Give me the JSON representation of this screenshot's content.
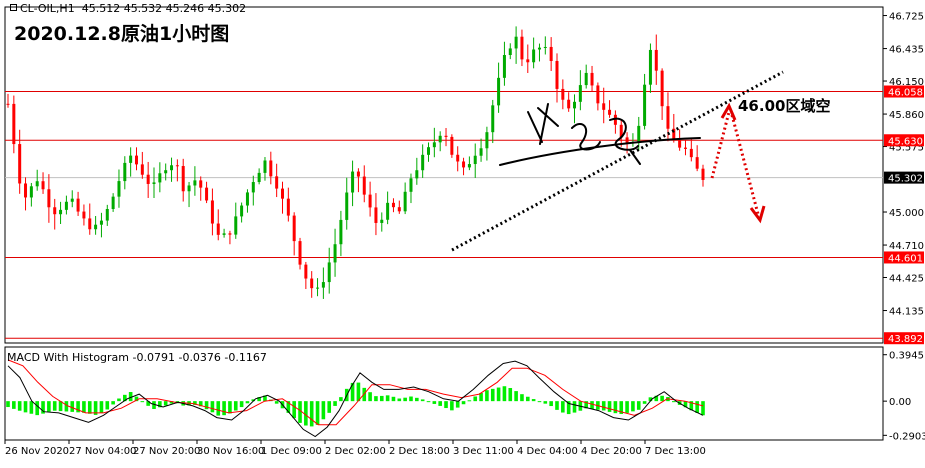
{
  "header": {
    "symbol": "CL-OIL,H1",
    "ohlc": "45.512 45.532 45.246 45.302",
    "macd_label": "MACD With Histogram",
    "macd_values": "-0.0791 -0.0376 -0.1167"
  },
  "colors": {
    "candle_red": "#ff0000",
    "candle_green": "#00aa00",
    "level_line": "#e00000",
    "price_badge": "#ff0000",
    "current_badge": "#000000",
    "signal_line": "#ff0000",
    "macd_line": "#000000",
    "hist_pos": "#00ee00"
  },
  "chart_data": [
    {
      "type": "candlestick",
      "title": "2020.12.8原油1小时图",
      "y_ticks": [
        "46.725",
        "46.435",
        "46.150",
        "45.860",
        "45.575",
        "45.000",
        "44.710",
        "44.425",
        "44.135"
      ],
      "ylim": [
        43.85,
        46.8
      ],
      "x_ticks": [
        "26 Nov 2020",
        "27 Nov 04:00",
        "27 Nov 20:00",
        "30 Nov 16:00",
        "1 Dec 09:00",
        "2 Dec 02:00",
        "2 Dec 18:00",
        "3 Dec 11:00",
        "4 Dec 04:00",
        "4 Dec 20:00",
        "7 Dec 13:00"
      ],
      "horizontal_levels": [
        "46.058",
        "45.630",
        "44.601",
        "43.892"
      ],
      "current_price": "45.302",
      "close_path": [
        [
          0,
          45.95
        ],
        [
          10,
          45.1
        ],
        [
          20,
          45.3
        ],
        [
          30,
          45.0
        ],
        [
          42,
          45.1
        ],
        [
          52,
          44.9
        ],
        [
          60,
          44.85
        ],
        [
          68,
          45.05
        ],
        [
          75,
          45.3
        ],
        [
          82,
          45.5
        ],
        [
          90,
          45.35
        ],
        [
          97,
          45.2
        ],
        [
          105,
          45.4
        ],
        [
          112,
          45.45
        ],
        [
          118,
          45.2
        ],
        [
          127,
          45.3
        ],
        [
          135,
          45.0
        ],
        [
          142,
          44.75
        ],
        [
          150,
          44.85
        ],
        [
          158,
          45.1
        ],
        [
          165,
          45.3
        ],
        [
          172,
          45.45
        ],
        [
          180,
          45.25
        ],
        [
          188,
          44.95
        ],
        [
          195,
          44.6
        ],
        [
          202,
          44.35
        ],
        [
          208,
          44.3
        ],
        [
          214,
          44.5
        ],
        [
          220,
          44.75
        ],
        [
          226,
          45.1
        ],
        [
          233,
          45.4
        ],
        [
          240,
          45.1
        ],
        [
          247,
          44.9
        ],
        [
          255,
          45.05
        ],
        [
          263,
          45.0
        ],
        [
          270,
          45.3
        ],
        [
          277,
          45.45
        ],
        [
          285,
          45.6
        ],
        [
          292,
          45.75
        ],
        [
          298,
          45.5
        ],
        [
          305,
          45.35
        ],
        [
          312,
          45.5
        ],
        [
          320,
          45.65
        ],
        [
          327,
          46.05
        ],
        [
          334,
          46.4
        ],
        [
          340,
          46.55
        ],
        [
          346,
          46.3
        ],
        [
          352,
          46.4
        ],
        [
          358,
          46.45
        ],
        [
          364,
          46.35
        ],
        [
          370,
          46.0
        ],
        [
          376,
          45.9
        ],
        [
          382,
          46.05
        ],
        [
          388,
          46.2
        ],
        [
          394,
          46.0
        ],
        [
          400,
          45.9
        ],
        [
          406,
          45.8
        ],
        [
          412,
          45.65
        ],
        [
          418,
          45.55
        ],
        [
          424,
          45.85
        ],
        [
          430,
          46.5
        ],
        [
          436,
          46.15
        ],
        [
          442,
          45.7
        ],
        [
          448,
          45.6
        ],
        [
          454,
          45.55
        ],
        [
          460,
          45.4
        ],
        [
          466,
          45.302
        ]
      ],
      "annotation": "46.00区域空"
    },
    {
      "type": "line",
      "title": "MACD With Histogram",
      "y_ticks": [
        "0.3945",
        "0.00",
        "-0.2903"
      ],
      "ylim": [
        -0.33,
        0.46
      ],
      "histogram": [
        [
          0,
          -0.05
        ],
        [
          10,
          -0.09
        ],
        [
          20,
          -0.12
        ],
        [
          30,
          -0.08
        ],
        [
          42,
          -0.09
        ],
        [
          52,
          -0.1
        ],
        [
          60,
          -0.12
        ],
        [
          68,
          -0.06
        ],
        [
          75,
          0.03
        ],
        [
          82,
          0.08
        ],
        [
          90,
          0.0
        ],
        [
          97,
          -0.07
        ],
        [
          105,
          -0.04
        ],
        [
          112,
          -0.01
        ],
        [
          118,
          -0.04
        ],
        [
          127,
          -0.03
        ],
        [
          135,
          -0.08
        ],
        [
          142,
          -0.13
        ],
        [
          150,
          -0.1
        ],
        [
          158,
          -0.04
        ],
        [
          165,
          0.02
        ],
        [
          172,
          0.05
        ],
        [
          180,
          -0.02
        ],
        [
          188,
          -0.1
        ],
        [
          195,
          -0.18
        ],
        [
          202,
          -0.22
        ],
        [
          208,
          -0.2
        ],
        [
          214,
          -0.12
        ],
        [
          220,
          -0.03
        ],
        [
          226,
          0.09
        ],
        [
          233,
          0.18
        ],
        [
          240,
          0.1
        ],
        [
          247,
          0.04
        ],
        [
          255,
          0.05
        ],
        [
          263,
          0.02
        ],
        [
          270,
          0.04
        ],
        [
          277,
          0.02
        ],
        [
          285,
          -0.02
        ],
        [
          292,
          -0.05
        ],
        [
          298,
          -0.08
        ],
        [
          305,
          -0.03
        ],
        [
          312,
          0.03
        ],
        [
          320,
          0.09
        ],
        [
          327,
          0.11
        ],
        [
          334,
          0.13
        ],
        [
          340,
          0.09
        ],
        [
          346,
          0.05
        ],
        [
          352,
          0.02
        ],
        [
          358,
          -0.01
        ],
        [
          364,
          -0.04
        ],
        [
          370,
          -0.09
        ],
        [
          376,
          -0.11
        ],
        [
          382,
          -0.09
        ],
        [
          388,
          -0.06
        ],
        [
          394,
          -0.07
        ],
        [
          400,
          -0.08
        ],
        [
          406,
          -0.1
        ],
        [
          412,
          -0.11
        ],
        [
          418,
          -0.09
        ],
        [
          424,
          -0.07
        ],
        [
          430,
          0.03
        ],
        [
          436,
          0.05
        ],
        [
          442,
          0.04
        ],
        [
          448,
          -0.02
        ],
        [
          454,
          -0.05
        ],
        [
          460,
          -0.09
        ],
        [
          466,
          -0.12
        ]
      ],
      "macd": [
        [
          0,
          0.3
        ],
        [
          8,
          0.2
        ],
        [
          16,
          0.0
        ],
        [
          24,
          -0.09
        ],
        [
          34,
          -0.1
        ],
        [
          44,
          -0.14
        ],
        [
          54,
          -0.18
        ],
        [
          64,
          -0.12
        ],
        [
          72,
          -0.05
        ],
        [
          80,
          0.02
        ],
        [
          88,
          0.06
        ],
        [
          96,
          -0.02
        ],
        [
          104,
          -0.05
        ],
        [
          114,
          -0.01
        ],
        [
          124,
          -0.04
        ],
        [
          132,
          -0.08
        ],
        [
          140,
          -0.14
        ],
        [
          150,
          -0.16
        ],
        [
          158,
          -0.08
        ],
        [
          166,
          0.02
        ],
        [
          174,
          0.05
        ],
        [
          182,
          0.0
        ],
        [
          190,
          -0.12
        ],
        [
          198,
          -0.24
        ],
        [
          206,
          -0.3
        ],
        [
          214,
          -0.22
        ],
        [
          222,
          -0.08
        ],
        [
          230,
          0.12
        ],
        [
          236,
          0.24
        ],
        [
          244,
          0.16
        ],
        [
          252,
          0.1
        ],
        [
          262,
          0.1
        ],
        [
          272,
          0.12
        ],
        [
          282,
          0.08
        ],
        [
          292,
          0.02
        ],
        [
          302,
          0.0
        ],
        [
          312,
          0.1
        ],
        [
          322,
          0.22
        ],
        [
          332,
          0.32
        ],
        [
          340,
          0.34
        ],
        [
          348,
          0.3
        ],
        [
          356,
          0.2
        ],
        [
          366,
          0.08
        ],
        [
          376,
          -0.02
        ],
        [
          386,
          -0.05
        ],
        [
          396,
          -0.08
        ],
        [
          406,
          -0.14
        ],
        [
          416,
          -0.16
        ],
        [
          424,
          -0.1
        ],
        [
          432,
          0.02
        ],
        [
          440,
          0.08
        ],
        [
          448,
          0.0
        ],
        [
          456,
          -0.06
        ],
        [
          466,
          -0.12
        ]
      ],
      "signal": [
        [
          0,
          0.35
        ],
        [
          10,
          0.3
        ],
        [
          20,
          0.16
        ],
        [
          30,
          0.04
        ],
        [
          40,
          -0.04
        ],
        [
          52,
          -0.1
        ],
        [
          64,
          -0.1
        ],
        [
          76,
          -0.06
        ],
        [
          88,
          0.02
        ],
        [
          100,
          0.02
        ],
        [
          112,
          -0.01
        ],
        [
          124,
          -0.02
        ],
        [
          136,
          -0.06
        ],
        [
          148,
          -0.1
        ],
        [
          160,
          -0.08
        ],
        [
          172,
          0.0
        ],
        [
          184,
          0.02
        ],
        [
          196,
          -0.08
        ],
        [
          208,
          -0.2
        ],
        [
          220,
          -0.2
        ],
        [
          232,
          -0.04
        ],
        [
          244,
          0.14
        ],
        [
          256,
          0.14
        ],
        [
          268,
          0.1
        ],
        [
          280,
          0.1
        ],
        [
          292,
          0.06
        ],
        [
          304,
          0.03
        ],
        [
          316,
          0.06
        ],
        [
          328,
          0.16
        ],
        [
          338,
          0.28
        ],
        [
          348,
          0.28
        ],
        [
          360,
          0.22
        ],
        [
          372,
          0.1
        ],
        [
          384,
          0.0
        ],
        [
          396,
          -0.04
        ],
        [
          408,
          -0.08
        ],
        [
          420,
          -0.12
        ],
        [
          432,
          -0.06
        ],
        [
          442,
          0.02
        ],
        [
          454,
          0.0
        ],
        [
          466,
          -0.04
        ]
      ]
    }
  ]
}
